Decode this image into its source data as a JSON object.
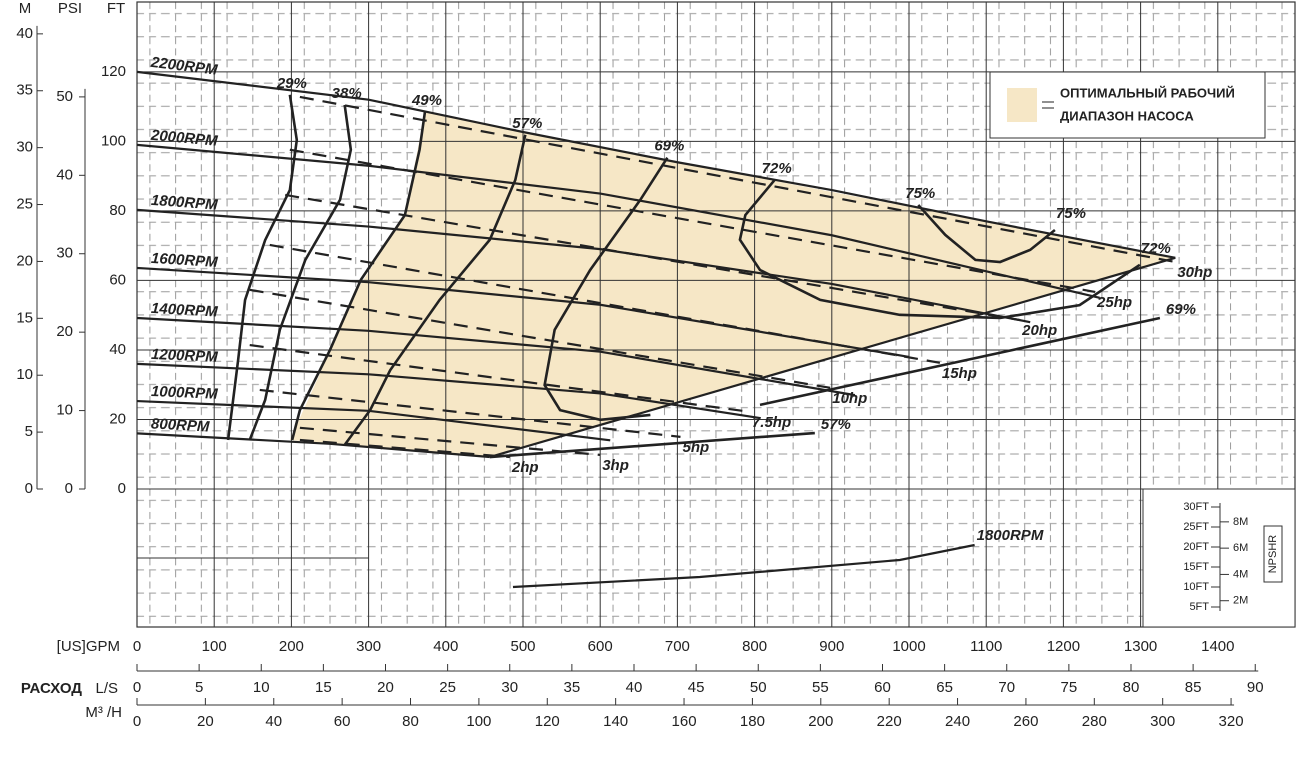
{
  "chart_data": {
    "type": "line",
    "xlabel": "[US]GPM",
    "xlim": [
      0,
      1500
    ],
    "xticks": [
      0,
      100,
      200,
      300,
      400,
      500,
      600,
      700,
      800,
      900,
      1000,
      1100,
      1200,
      1300,
      1400
    ],
    "ylabel": "FT",
    "ylim": [
      0,
      140.1
    ],
    "yticks": [
      0,
      20,
      40,
      60,
      80,
      100,
      120
    ],
    "grid": true,
    "y_m": {
      "label": "M",
      "lim": [
        0,
        42.8
      ],
      "ticks": [
        0,
        5,
        10,
        15,
        20,
        25,
        30,
        35,
        40
      ]
    },
    "y_psi": {
      "label": "PSI",
      "lim": [
        0,
        62.1
      ],
      "ticks": [
        0,
        10,
        20,
        30,
        40,
        50
      ]
    },
    "x_ls": {
      "title": "РАСХОД",
      "label": "L/S",
      "lim": [
        0,
        93.2
      ],
      "ticks": [
        0,
        5,
        10,
        15,
        20,
        25,
        30,
        35,
        40,
        45,
        50,
        55,
        60,
        65,
        70,
        75,
        80,
        85,
        90
      ]
    },
    "x_m3h": {
      "label": "M³ /H",
      "lim": [
        0,
        338.7
      ],
      "ticks": [
        0,
        20,
        40,
        60,
        80,
        100,
        120,
        140,
        160,
        180,
        200,
        220,
        240,
        260,
        280,
        300,
        320
      ]
    },
    "region": {
      "color": "#f6e7c6",
      "label_lines": [
        "ОПТИМАЛЬНЫЙ РАБОЧИЙ",
        "ДИАПАЗОН НАСОСА"
      ],
      "x": [
        373,
        700,
        1345,
        457,
        198,
        289,
        347
      ],
      "y": [
        108.5,
        94,
        66.5,
        9.2,
        14.1,
        58.7,
        78.8
      ]
    },
    "boundary": {
      "x": [
        457,
        1345
      ],
      "y": [
        9.2,
        66.5
      ]
    },
    "series": [
      {
        "name": "2200RPM",
        "kind": "speed",
        "x": [
          0,
          300,
          500,
          700,
          900,
          1100,
          1345
        ],
        "y": [
          120,
          112,
          102.7,
          94,
          86,
          77,
          66.5
        ]
      },
      {
        "name": "2000RPM",
        "kind": "speed",
        "x": [
          0,
          300,
          600,
          900,
          1247
        ],
        "y": [
          99,
          93,
          85,
          73,
          55
        ]
      },
      {
        "name": "1800RPM",
        "kind": "speed",
        "x": [
          0,
          300,
          600,
          900,
          1157
        ],
        "y": [
          80.3,
          75.5,
          69,
          59,
          48
        ]
      },
      {
        "name": "1600RPM",
        "kind": "speed",
        "x": [
          0,
          300,
          600,
          1000
        ],
        "y": [
          63.6,
          59.5,
          53,
          38
        ]
      },
      {
        "name": "1400RPM",
        "kind": "speed",
        "x": [
          0,
          300,
          600,
          930
        ],
        "y": [
          49.2,
          45.5,
          39.5,
          27
        ]
      },
      {
        "name": "1200RPM",
        "kind": "speed",
        "x": [
          0,
          300,
          600,
          807
        ],
        "y": [
          36,
          33,
          27.5,
          20.4
        ]
      },
      {
        "name": "1000RPM",
        "kind": "speed",
        "x": [
          0,
          300,
          613
        ],
        "y": [
          25.3,
          22.5,
          14
        ]
      },
      {
        "name": "800RPM",
        "kind": "speed",
        "x": [
          0,
          250,
          457
        ],
        "y": [
          16,
          13,
          9.2
        ]
      },
      {
        "name": "29%",
        "kind": "efficiency",
        "x": [
          198,
          207,
          198,
          166,
          140,
          131,
          118
        ],
        "y": [
          113.4,
          100.4,
          86,
          71.6,
          54.4,
          37.1,
          14.1
        ]
      },
      {
        "name": "38%",
        "kind": "efficiency",
        "x": [
          269,
          277,
          263,
          218,
          185,
          166,
          146
        ],
        "y": [
          110.5,
          97.6,
          83.2,
          65.9,
          45.8,
          25.6,
          14.1
        ]
      },
      {
        "name": "49%",
        "kind": "efficiency",
        "x": [
          373,
          366,
          347,
          290,
          250,
          211,
          201
        ],
        "y": [
          108.5,
          97.6,
          78.8,
          60.2,
          40,
          22.7,
          14.1
        ]
      },
      {
        "name": "57%",
        "kind": "efficiency",
        "x": [
          503,
          490,
          457,
          392,
          328,
          302,
          269
        ],
        "y": [
          101.9,
          88.9,
          71.7,
          54.4,
          34.2,
          22.7,
          12.7
        ]
      },
      {
        "name": "69%",
        "kind": "efficiency",
        "x": [
          687,
          652,
          587,
          541,
          528,
          548,
          600,
          665
        ],
        "y": [
          95.3,
          83.2,
          63,
          45.8,
          29.9,
          22.7,
          19.9,
          21.3
        ]
      },
      {
        "name": "72%",
        "end_label": "72%",
        "kind": "efficiency",
        "x": [
          826,
          788,
          781,
          807,
          885,
          988,
          1118,
          1221,
          1299
        ],
        "y": [
          88.9,
          78.8,
          71.7,
          63,
          54.4,
          50.1,
          49.2,
          52.9,
          64.5
        ]
      },
      {
        "name": "75%",
        "end_label": "75%",
        "kind": "efficiency",
        "x": [
          1012,
          1047,
          1086,
          1118,
          1157,
          1189
        ],
        "y": [
          81.7,
          73.1,
          65.9,
          65.3,
          68.8,
          74.5
        ]
      },
      {
        "name": "69%",
        "label_at": "end",
        "kind": "efficiency",
        "x": [
          807,
          1325
        ],
        "y": [
          24.2,
          49.2
        ]
      },
      {
        "name": "57%",
        "label_at": "end",
        "kind": "efficiency",
        "x": [
          457,
          878
        ],
        "y": [
          9.2,
          16.1
        ]
      },
      {
        "name": "30hp",
        "kind": "power",
        "x": [
          211,
          1345
        ],
        "y": [
          112.8,
          65.3
        ]
      },
      {
        "name": "25hp",
        "kind": "power",
        "x": [
          198,
          1241
        ],
        "y": [
          97.6,
          56.7
        ]
      },
      {
        "name": "20hp",
        "kind": "power",
        "x": [
          192,
          1144
        ],
        "y": [
          84.6,
          48.6
        ]
      },
      {
        "name": "15hp",
        "kind": "power",
        "x": [
          172,
          1040
        ],
        "y": [
          70.2,
          36.3
        ]
      },
      {
        "name": "10hp",
        "kind": "power",
        "x": [
          146,
          898
        ],
        "y": [
          57.3,
          29.1
        ]
      },
      {
        "name": "7.5hp",
        "kind": "power",
        "x": [
          146,
          794
        ],
        "y": [
          41.4,
          22.2
        ]
      },
      {
        "name": "5hp",
        "kind": "power",
        "x": [
          159,
          704
        ],
        "y": [
          28.5,
          15
        ]
      },
      {
        "name": "3hp",
        "kind": "power",
        "x": [
          211,
          600
        ],
        "y": [
          17.6,
          9.8
        ]
      },
      {
        "name": "2hp",
        "kind": "power",
        "x": [
          211,
          483
        ],
        "y": [
          14.1,
          9.2
        ]
      }
    ],
    "npshr": {
      "label": "NPSHR",
      "ylim": [
        0,
        34.5
      ],
      "yticks": [
        {
          "value": 5,
          "label": "5FT"
        },
        {
          "value": 10,
          "label": "10FT"
        },
        {
          "value": 15,
          "label": "15FT"
        },
        {
          "value": 20,
          "label": "20FT"
        },
        {
          "value": 25,
          "label": "25FT"
        },
        {
          "value": 30,
          "label": "30FT"
        }
      ],
      "y2lim": [
        0,
        10.5
      ],
      "y2ticks": [
        {
          "value": 2,
          "label": "2M"
        },
        {
          "value": 4,
          "label": "4M"
        },
        {
          "value": 6,
          "label": "6M"
        },
        {
          "value": 8,
          "label": "8M"
        }
      ],
      "series": [
        {
          "name": "1800RPM",
          "x": [
            487,
            729,
            988,
            1085
          ],
          "y": [
            10,
            12.5,
            16.75,
            20.5
          ]
        }
      ]
    }
  }
}
